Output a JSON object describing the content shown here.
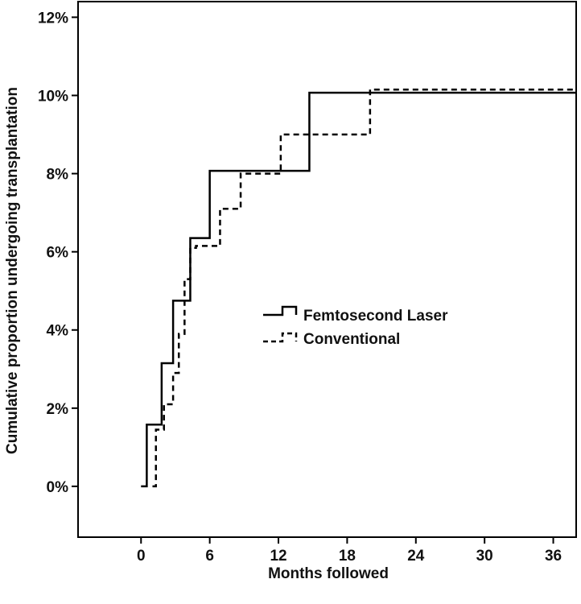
{
  "chart_data": {
    "type": "line",
    "step": true,
    "title": "",
    "xlabel": "Months followed",
    "ylabel": "Cumulative proportion undergoing transplantation",
    "xlim": [
      -5.5,
      38
    ],
    "ylim": [
      -1.3,
      12.4
    ],
    "xticks": [
      0,
      6,
      12,
      18,
      24,
      30,
      36
    ],
    "xtick_labels": [
      "0",
      "6",
      "12",
      "18",
      "24",
      "30",
      "36"
    ],
    "yticks": [
      0,
      2,
      4,
      6,
      8,
      10,
      12
    ],
    "ytick_labels": [
      "0%",
      "2%",
      "4%",
      "6%",
      "8%",
      "10%",
      "12%"
    ],
    "grid": false,
    "legend_position": "center-right",
    "series": [
      {
        "name": "Femtosecond Laser",
        "style": "solid",
        "color": "#000000",
        "x": [
          0,
          0.5,
          1.8,
          2.8,
          4.3,
          6.0,
          14.7,
          38
        ],
        "y": [
          0,
          1.58,
          3.15,
          4.75,
          6.35,
          8.07,
          10.07,
          10.07
        ]
      },
      {
        "name": "Conventional",
        "style": "dashed",
        "color": "#000000",
        "x": [
          1.0,
          1.3,
          2.0,
          2.8,
          3.3,
          3.8,
          4.3,
          4.8,
          6.9,
          8.7,
          11.2,
          12.2,
          20.0,
          38
        ],
        "y": [
          0,
          1.45,
          2.1,
          2.9,
          3.9,
          5.3,
          6.1,
          6.15,
          7.1,
          8.0,
          8.0,
          9.0,
          10.15,
          10.15
        ]
      }
    ]
  }
}
